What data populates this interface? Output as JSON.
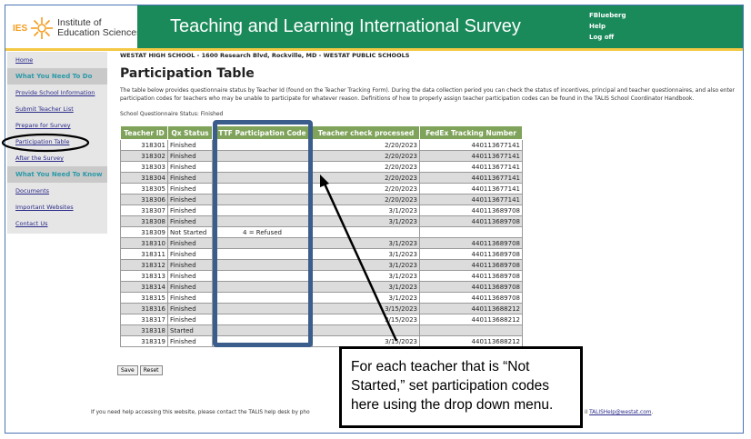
{
  "header": {
    "logo_abbr": "IES",
    "logo_text_1": "Institute of",
    "logo_text_2": "Education Sciences",
    "title": "Teaching and Learning International Survey",
    "user": "FBlueberg",
    "help": "Help",
    "logoff": "Log off"
  },
  "sidebar": {
    "items": [
      {
        "label": "Home",
        "type": "link"
      },
      {
        "label": "What You Need To Do",
        "type": "section"
      },
      {
        "label": "Provide School Information",
        "type": "link"
      },
      {
        "label": "Submit Teacher List",
        "type": "link"
      },
      {
        "label": "Prepare for Survey",
        "type": "link"
      },
      {
        "label": "Participation Table",
        "type": "link"
      },
      {
        "label": "After the Survey",
        "type": "link"
      },
      {
        "label": "What You Need To Know",
        "type": "section"
      },
      {
        "label": "Documents",
        "type": "link"
      },
      {
        "label": "Important Websites",
        "type": "link"
      },
      {
        "label": "Contact Us",
        "type": "link"
      }
    ]
  },
  "main": {
    "school_line": "WESTAT HIGH SCHOOL  -  1600 Research Blvd, Rockville, MD  -  WESTAT PUBLIC SCHOOLS",
    "title": "Participation Table",
    "description": "The table below provides questionnaire status by Teacher Id (found on the Teacher Tracking Form). During the data collection period you can check the status of incentives, principal and teacher questionnaires, and also enter participation codes for teachers who may be unable to participate for whatever reason. Definitions of how to properly assign teacher participation codes can be found in the TALIS School Coordinator Handbook.",
    "questionnaire_status": "School Questionnaire Status: Finished",
    "save": "Save",
    "reset": "Reset"
  },
  "table": {
    "headers": [
      "Teacher ID",
      "Qx Status",
      "TTF Participation Code",
      "Teacher check processed",
      "FedEx Tracking Number"
    ],
    "rows": [
      [
        "318301",
        "Finished",
        "",
        "2/20/2023",
        "440113677141"
      ],
      [
        "318302",
        "Finished",
        "",
        "2/20/2023",
        "440113677141"
      ],
      [
        "318303",
        "Finished",
        "",
        "2/20/2023",
        "440113677141"
      ],
      [
        "318304",
        "Finished",
        "",
        "2/20/2023",
        "440113677141"
      ],
      [
        "318305",
        "Finished",
        "",
        "2/20/2023",
        "440113677141"
      ],
      [
        "318306",
        "Finished",
        "",
        "2/20/2023",
        "440113677141"
      ],
      [
        "318307",
        "Finished",
        "",
        "3/1/2023",
        "440113689708"
      ],
      [
        "318308",
        "Finished",
        "",
        "3/1/2023",
        "440113689708"
      ],
      [
        "318309",
        "Not Started",
        "4 = Refused",
        "",
        ""
      ],
      [
        "318310",
        "Finished",
        "",
        "3/1/2023",
        "440113689708"
      ],
      [
        "318311",
        "Finished",
        "",
        "3/1/2023",
        "440113689708"
      ],
      [
        "318312",
        "Finished",
        "",
        "3/1/2023",
        "440113689708"
      ],
      [
        "318313",
        "Finished",
        "",
        "3/1/2023",
        "440113689708"
      ],
      [
        "318314",
        "Finished",
        "",
        "3/1/2023",
        "440113689708"
      ],
      [
        "318315",
        "Finished",
        "",
        "3/1/2023",
        "440113689708"
      ],
      [
        "318316",
        "Finished",
        "",
        "3/15/2023",
        "440113688212"
      ],
      [
        "318317",
        "Finished",
        "",
        "3/15/2023",
        "440113688212"
      ],
      [
        "318318",
        "Started",
        "",
        "",
        ""
      ],
      [
        "318319",
        "Finished",
        "",
        "3/15/2023",
        "440113688212"
      ]
    ]
  },
  "footer": {
    "text_start": "If you need help accessing this website, please contact the TALIS help desk by pho",
    "text_end": "il ",
    "email": "TALISHelp@westat.com",
    "period": "."
  },
  "callout": {
    "text": "For each teacher that is “Not Started,” set participation codes here using the drop down menu."
  },
  "colors": {
    "header_green": "#1a8a5a",
    "table_header": "#7fa35a",
    "highlight_box": "#3b5d8c",
    "accent_yellow": "#f4c842"
  }
}
